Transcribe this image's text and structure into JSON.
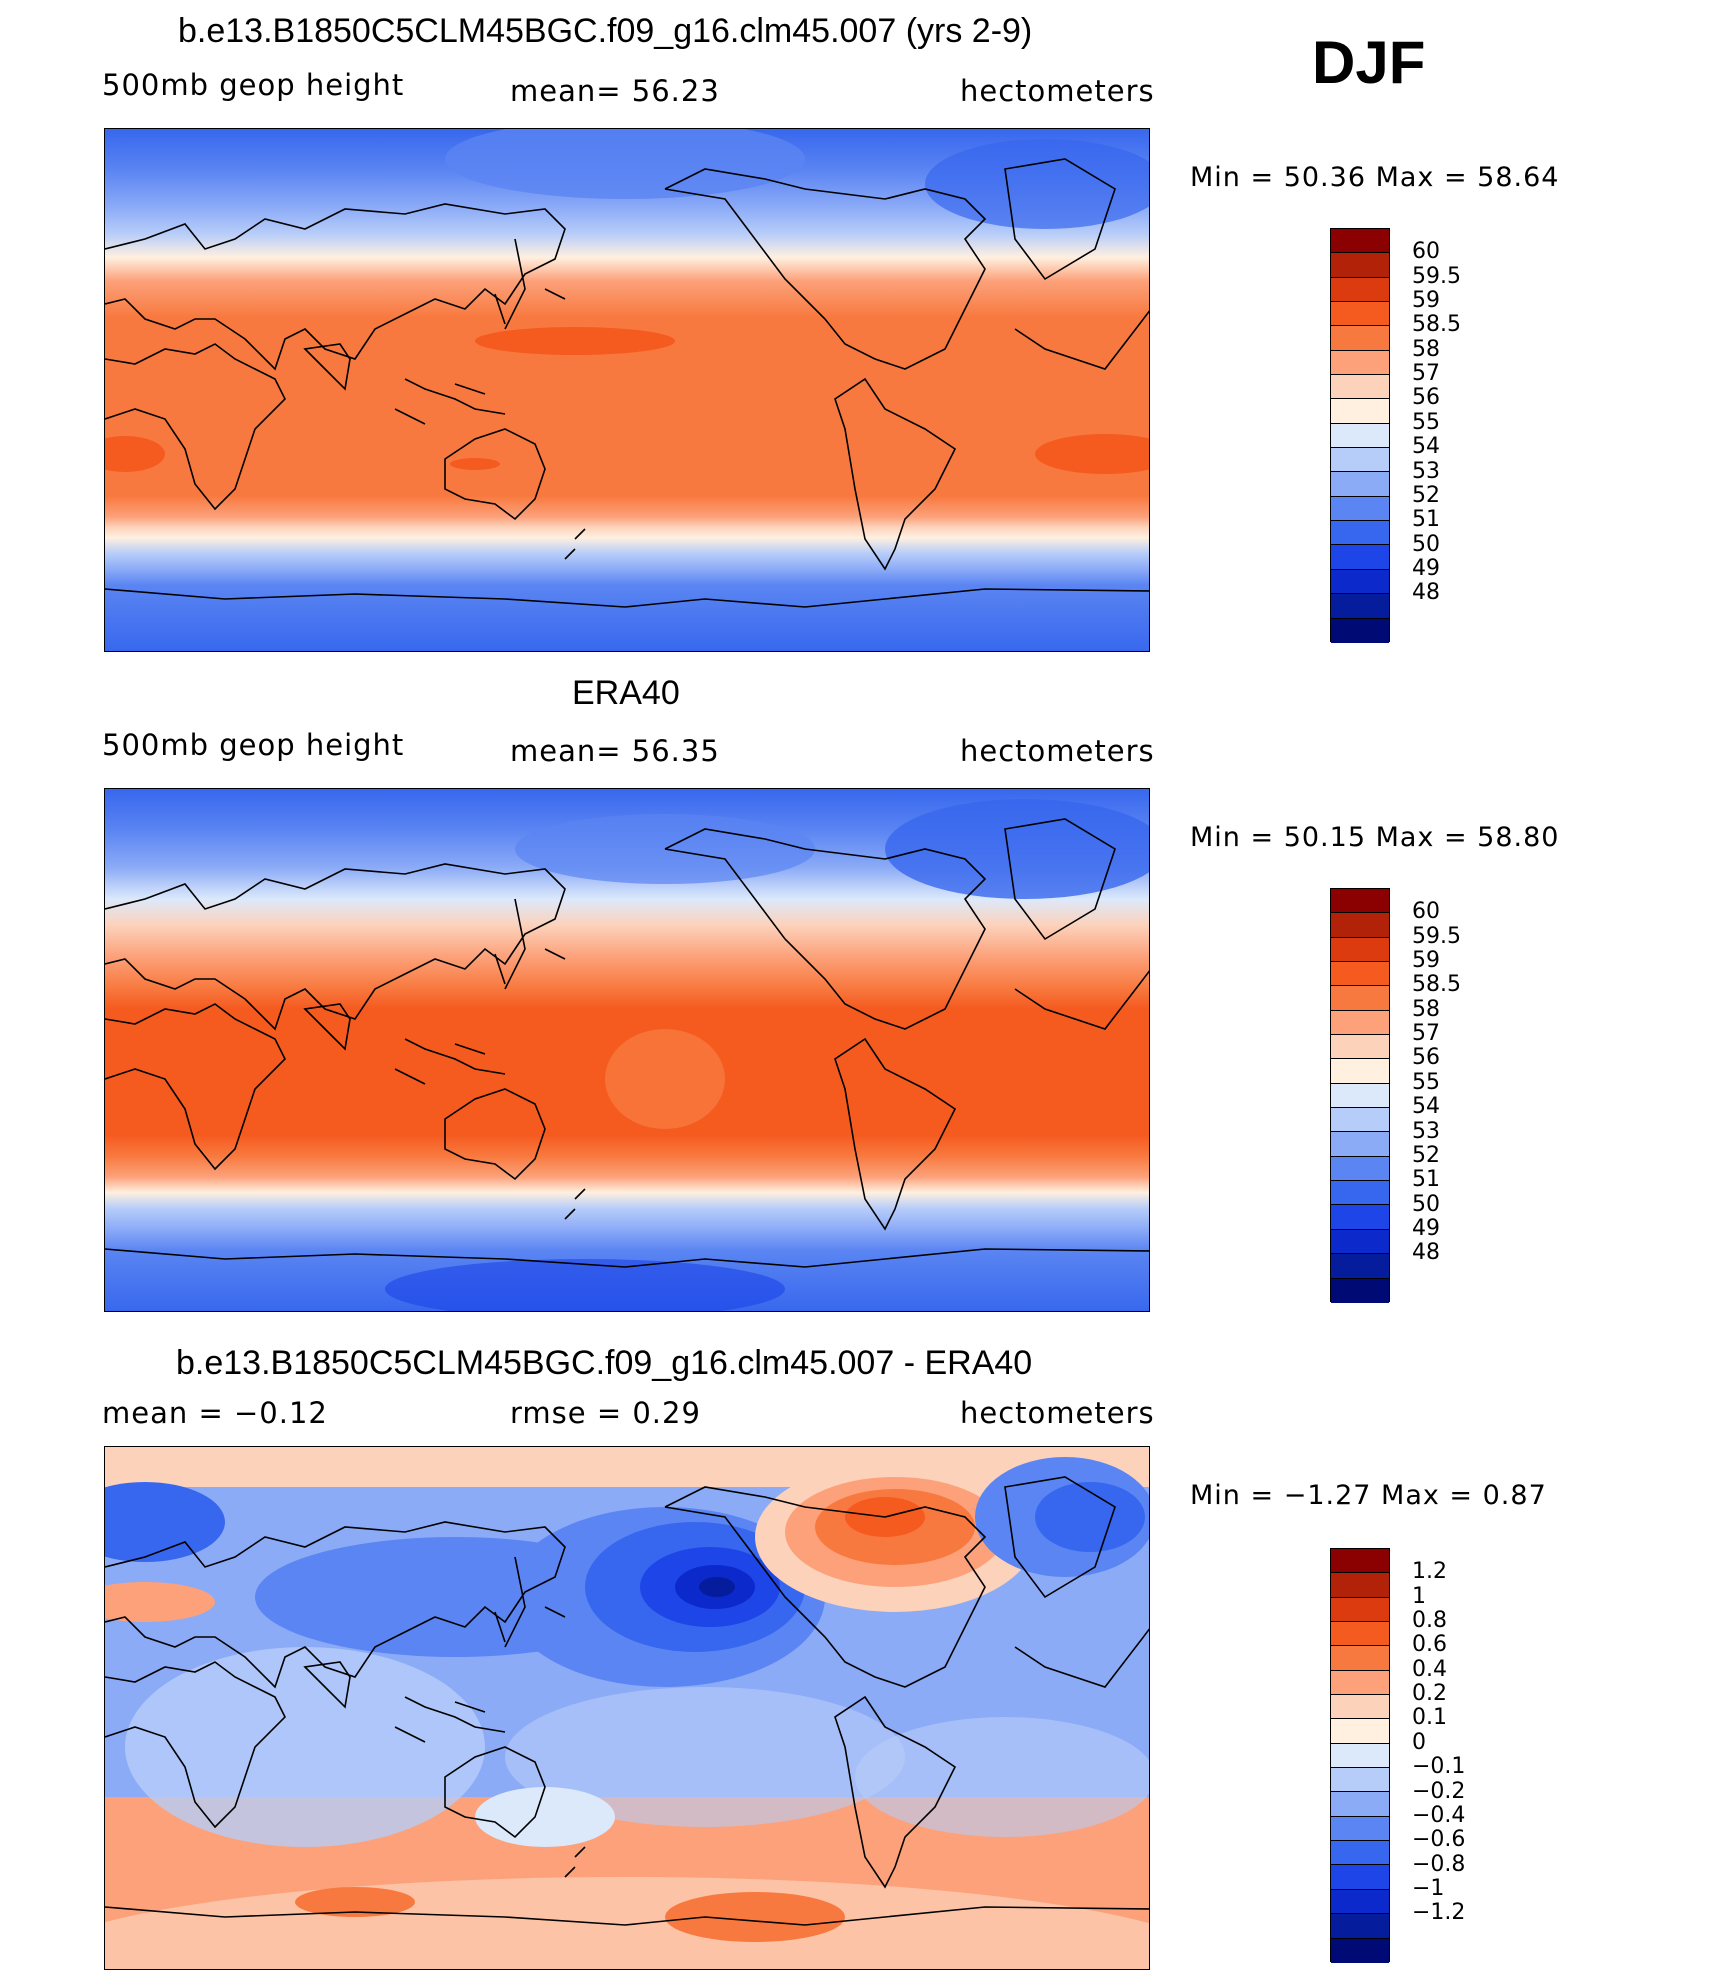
{
  "season": "DJF",
  "panels": [
    {
      "id": "model",
      "title": "b.e13.B1850C5CLM45BGC.f09_g16.clm45.007 (yrs 2-9)",
      "left_label": "500mb geop height",
      "center_label": "mean=  56.23",
      "right_label": "hectometers",
      "minmax": "Min =   50.36  Max =   58.64",
      "legend_colors": [
        "#8b0000",
        "#b22208",
        "#db3b0f",
        "#f55a1f",
        "#f8793f",
        "#fca17a",
        "#fcd2bb",
        "#fff0e0",
        "#dce9fb",
        "#b7cdf9",
        "#8cabf7",
        "#5b85f2",
        "#3767ee",
        "#1d45e8",
        "#0c2acc",
        "#051c9c",
        "#000a75"
      ],
      "legend_labels": [
        "60",
        "59.5",
        "59",
        "58.5",
        "58",
        "57",
        "56",
        "55",
        "54",
        "53",
        "52",
        "51",
        "50",
        "49",
        "48"
      ]
    },
    {
      "id": "obs",
      "title": "ERA40",
      "left_label": "500mb geop height",
      "center_label": "mean=  56.35",
      "right_label": "hectometers",
      "minmax": "Min =   50.15  Max =   58.80",
      "legend_colors": [
        "#8b0000",
        "#b22208",
        "#db3b0f",
        "#f55a1f",
        "#f8793f",
        "#fca17a",
        "#fcd2bb",
        "#fff0e0",
        "#dce9fb",
        "#b7cdf9",
        "#8cabf7",
        "#5b85f2",
        "#3767ee",
        "#1d45e8",
        "#0c2acc",
        "#051c9c",
        "#000a75"
      ],
      "legend_labels": [
        "60",
        "59.5",
        "59",
        "58.5",
        "58",
        "57",
        "56",
        "55",
        "54",
        "53",
        "52",
        "51",
        "50",
        "49",
        "48"
      ]
    },
    {
      "id": "diff",
      "title": "b.e13.B1850C5CLM45BGC.f09_g16.clm45.007 - ERA40",
      "left_label": "mean =   −0.12",
      "center_label": "rmse =    0.29",
      "right_label": "hectometers",
      "minmax": "Min =   −1.27  Max =    0.87",
      "legend_colors": [
        "#8b0000",
        "#b22208",
        "#db3b0f",
        "#f55a1f",
        "#f8793f",
        "#fca17a",
        "#fcd2bb",
        "#fff0e0",
        "#dce9fb",
        "#b7cdf9",
        "#8cabf7",
        "#5b85f2",
        "#3767ee",
        "#1d45e8",
        "#0c2acc",
        "#051c9c",
        "#000a75"
      ],
      "legend_labels": [
        "1.2",
        "1",
        "0.8",
        "0.6",
        "0.4",
        "0.2",
        "0.1",
        "0",
        "−0.1",
        "−0.2",
        "−0.4",
        "−0.6",
        "−0.8",
        "−1",
        "−1.2"
      ]
    }
  ]
}
